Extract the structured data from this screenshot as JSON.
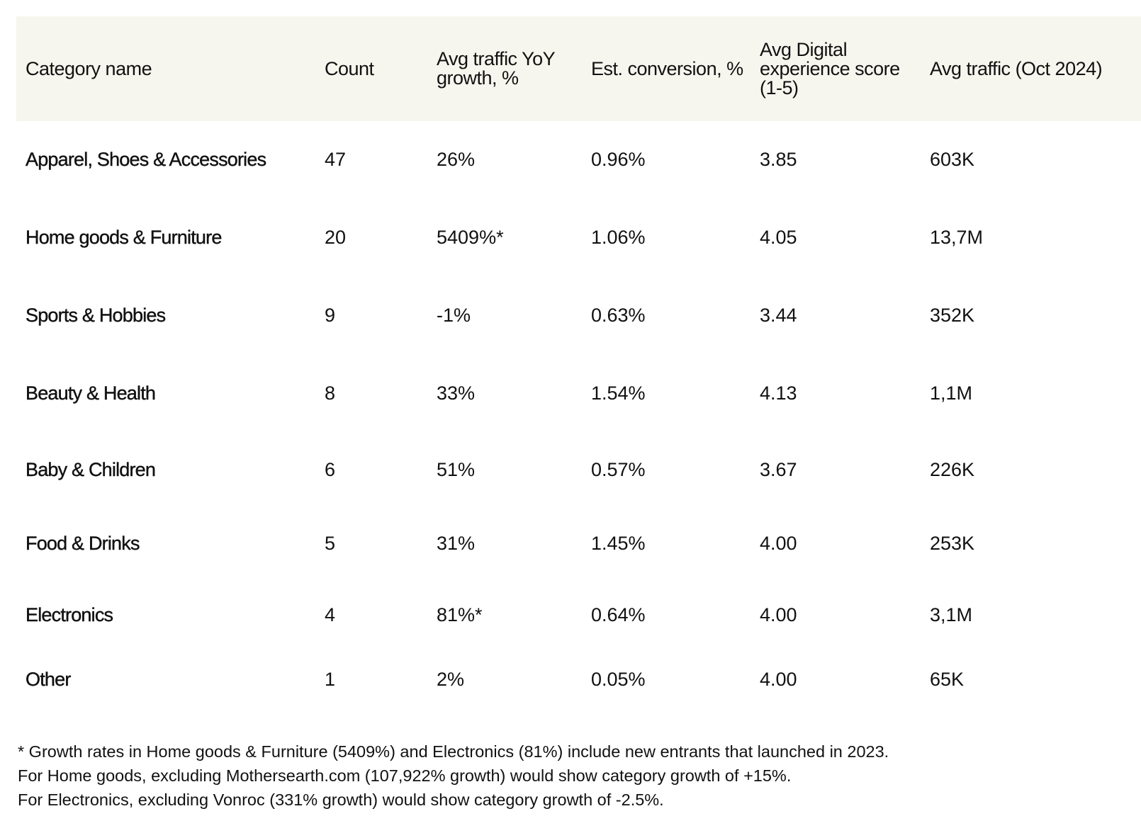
{
  "table": {
    "headers": [
      "Category name",
      "Count",
      "Avg traffic YoY growth, %",
      "Est. conversion, %",
      "Avg Digital experience score (1-5)",
      "Avg traffic (Oct 2024)"
    ],
    "rows": [
      [
        "Apparel, Shoes & Accessories",
        "47",
        "26%",
        "0.96%",
        "3.85",
        "603K"
      ],
      [
        "Home goods & Furniture",
        "20",
        "5409%*",
        "1.06%",
        "4.05",
        "13,7M"
      ],
      [
        "Sports & Hobbies",
        "9",
        "-1%",
        "0.63%",
        "3.44",
        "352K"
      ],
      [
        "Beauty & Health",
        "8",
        "33%",
        "1.54%",
        "4.13",
        "1,1M"
      ],
      [
        "Baby & Children",
        "6",
        "51%",
        "0.57%",
        "3.67",
        "226K"
      ],
      [
        "Food & Drinks",
        "5",
        "31%",
        "1.45%",
        "4.00",
        "253K"
      ],
      [
        "Electronics",
        "4",
        "81%*",
        "0.64%",
        "4.00",
        "3,1M"
      ],
      [
        "Other",
        "1",
        "2%",
        "0.05%",
        "4.00",
        "65K"
      ]
    ]
  },
  "footnotes": [
    " *  Growth rates in Home goods & Furniture (5409%) and Electronics (81%) include new entrants that launched in 2023.",
    "For Home goods, excluding Mothersearth.com (107,922% growth) would show category growth of +15%.",
    "For Electronics, excluding Vonroc (331% growth) would show category growth of -2.5%."
  ],
  "colors": {
    "header_background": "#f7f6ee",
    "text": "#111111"
  }
}
